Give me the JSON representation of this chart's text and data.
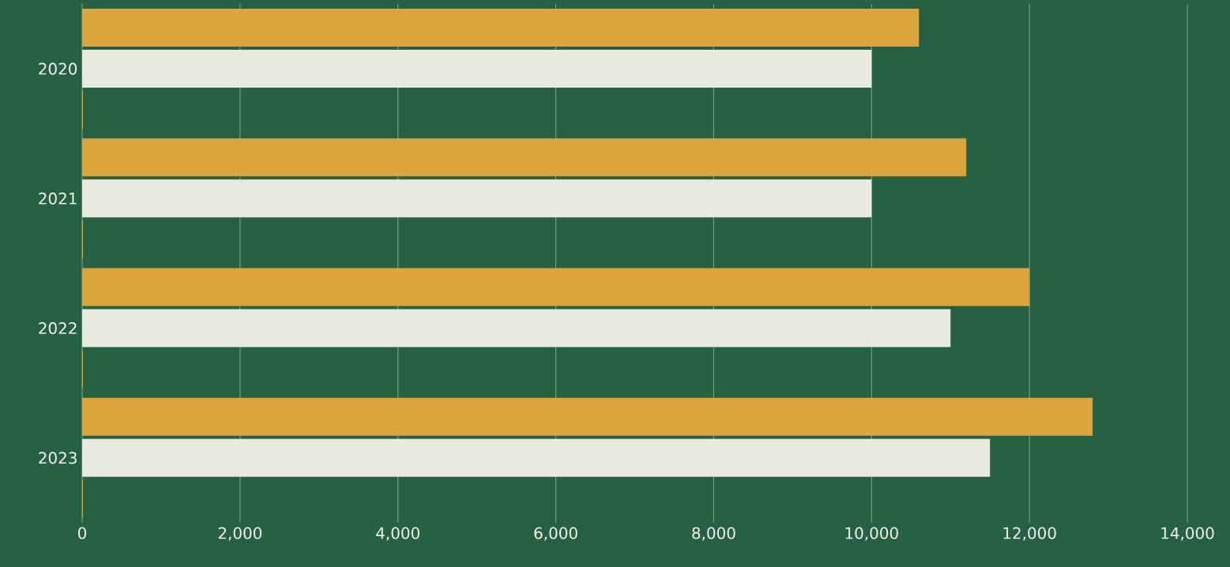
{
  "chart_data": {
    "type": "bar",
    "orientation": "horizontal",
    "categories": [
      "2020",
      "2021",
      "2022",
      "2023"
    ],
    "series": [
      {
        "color": "#dca53c",
        "values": [
          10600,
          11200,
          12000,
          12800
        ]
      },
      {
        "color": "#e8eadf",
        "values": [
          10000,
          10000,
          11000,
          11500
        ]
      },
      {
        "color": "#f0a30a",
        "values": [
          10,
          10,
          10,
          10
        ]
      }
    ],
    "xlim": [
      0,
      14000
    ],
    "xticks": [
      0,
      {
        "value": 2000,
        "label": "2,000"
      },
      {
        "value": 4000,
        "label": "4,000"
      },
      {
        "value": 6000,
        "label": "6,000"
      },
      {
        "value": 8000,
        "label": "8,000"
      },
      {
        "value": 10000,
        "label": "10,000"
      },
      {
        "value": 12000,
        "label": "12,000"
      },
      {
        "value": 14000,
        "label": "14,000"
      }
    ],
    "grid": "x"
  }
}
